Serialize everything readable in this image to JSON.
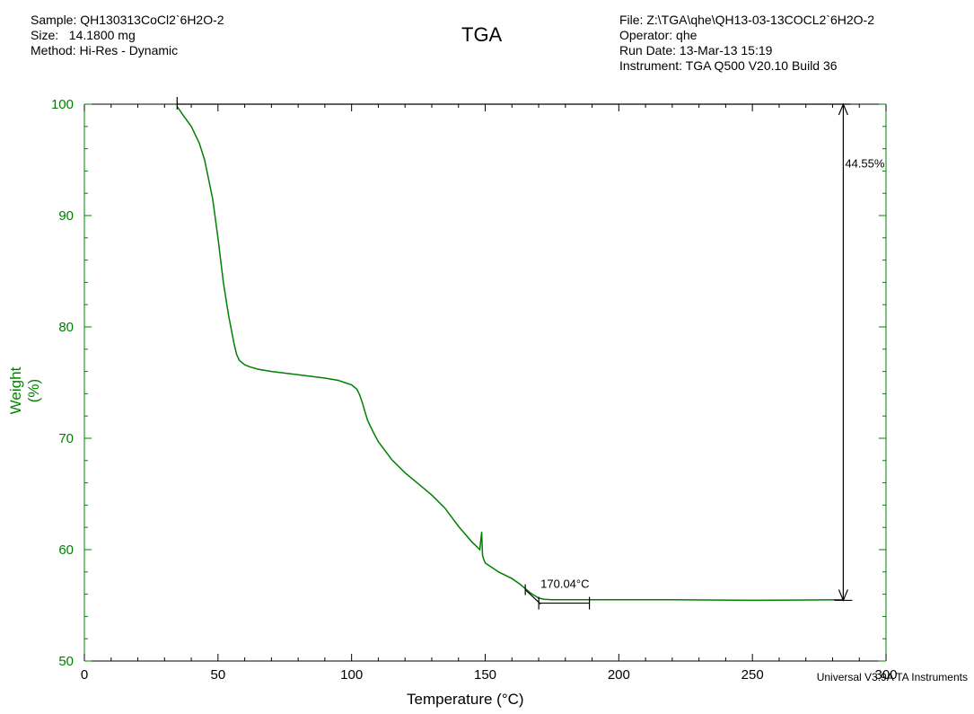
{
  "header": {
    "left": [
      "Sample: QH130313CoCl2`6H2O-2",
      "Size:   14.1800 mg",
      "Method: Hi-Res - Dynamic"
    ],
    "right": [
      "File: Z:\\TGA\\qhe\\QH13-03-13COCL2`6H2O-2",
      "Operator: qhe",
      "Run Date: 13-Mar-13 15:19",
      "Instrument: TGA Q500 V20.10 Build 36"
    ]
  },
  "footer": "Universal V3.9A TA Instruments",
  "colors": {
    "curve": "#008000",
    "axis_y": "#008000",
    "frame": "#000000"
  },
  "chart_data": {
    "type": "line",
    "title": "TGA",
    "xlabel": "Temperature (°C)",
    "ylabel": "Weight (%)",
    "xlim": [
      0,
      300
    ],
    "ylim": [
      50,
      100
    ],
    "xticks": [
      "0",
      "50",
      "100",
      "150",
      "200",
      "250",
      "300"
    ],
    "yticks": [
      "50",
      "60",
      "70",
      "80",
      "90",
      "100"
    ],
    "grid": false,
    "series": [
      {
        "x": [
          34.7,
          37,
          40,
          43,
          45,
          48,
          50,
          52,
          54,
          56,
          57,
          58,
          59,
          60,
          62,
          65,
          70,
          80,
          90,
          95,
          100,
          102,
          103,
          104,
          105,
          106,
          108,
          110,
          115,
          120,
          125,
          130,
          135,
          140,
          145,
          148,
          148.7,
          149,
          149.5,
          150,
          155,
          160,
          163,
          165,
          167,
          169,
          170,
          172,
          175,
          180,
          190,
          200,
          220,
          250,
          284
        ],
        "y": [
          99.8,
          99,
          98,
          96.5,
          95,
          91.5,
          88,
          84,
          81,
          78.5,
          77.5,
          77,
          76.8,
          76.6,
          76.4,
          76.2,
          76,
          75.7,
          75.4,
          75.2,
          74.8,
          74.4,
          73.9,
          73.2,
          72.4,
          71.6,
          70.6,
          69.7,
          68.1,
          66.9,
          65.9,
          64.9,
          63.7,
          62.1,
          60.7,
          60,
          61.6,
          59.5,
          59.1,
          58.8,
          58,
          57.4,
          56.9,
          56.5,
          56.1,
          55.8,
          55.65,
          55.55,
          55.5,
          55.5,
          55.5,
          55.5,
          55.5,
          55.45,
          55.5
        ]
      }
    ],
    "annotations": [
      {
        "type": "step",
        "label": "44.55%",
        "from_y": 100,
        "to_y": 55.45,
        "at_x": 284
      },
      {
        "type": "onset",
        "label": "170.04°C",
        "x": 170.04,
        "y": 55.6
      }
    ]
  }
}
